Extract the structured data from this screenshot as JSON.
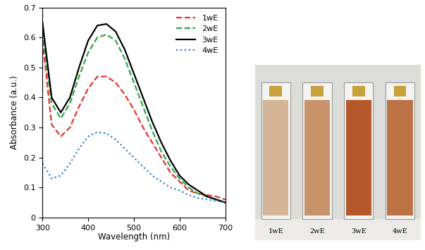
{
  "chart_data": {
    "type": "line",
    "xlabel": "Wavelength (nm)",
    "ylabel": "Absorbance (a.u.)",
    "x": [
      300,
      320,
      340,
      360,
      380,
      400,
      420,
      440,
      460,
      480,
      500,
      520,
      540,
      560,
      580,
      600,
      620,
      640,
      660,
      680,
      700
    ],
    "series": [
      {
        "name": "1wE",
        "color": "#e8312a",
        "line_style": "dashed",
        "values": [
          0.59,
          0.31,
          0.27,
          0.3,
          0.37,
          0.43,
          0.47,
          0.47,
          0.45,
          0.41,
          0.36,
          0.3,
          0.25,
          0.2,
          0.15,
          0.12,
          0.09,
          0.08,
          0.075,
          0.07,
          0.06
        ]
      },
      {
        "name": "2wE",
        "color": "#2ca84a",
        "line_style": "dashed",
        "values": [
          0.62,
          0.38,
          0.33,
          0.38,
          0.47,
          0.55,
          0.6,
          0.61,
          0.59,
          0.53,
          0.45,
          0.37,
          0.29,
          0.22,
          0.17,
          0.13,
          0.1,
          0.08,
          0.07,
          0.06,
          0.05
        ]
      },
      {
        "name": "3wE",
        "color": "#000000",
        "line_style": "solid",
        "values": [
          0.65,
          0.4,
          0.35,
          0.4,
          0.5,
          0.59,
          0.64,
          0.645,
          0.62,
          0.56,
          0.48,
          0.4,
          0.32,
          0.25,
          0.19,
          0.14,
          0.11,
          0.09,
          0.07,
          0.06,
          0.05
        ]
      },
      {
        "name": "4wE",
        "color": "#2e7fd6",
        "line_style": "dotted",
        "values": [
          0.18,
          0.13,
          0.14,
          0.18,
          0.23,
          0.27,
          0.285,
          0.28,
          0.26,
          0.23,
          0.2,
          0.17,
          0.14,
          0.12,
          0.1,
          0.09,
          0.075,
          0.065,
          0.06,
          0.055,
          0.05
        ]
      }
    ],
    "xlim": [
      300,
      700
    ],
    "ylim": [
      0,
      0.7
    ],
    "xticks": [
      300,
      400,
      500,
      600,
      700
    ],
    "yticks": [
      0,
      0.1,
      0.2,
      0.3,
      0.4,
      0.5,
      0.6,
      0.7
    ],
    "legend": "upper right"
  },
  "photo": {
    "labels": [
      "1wE",
      "2wE",
      "3wE",
      "4wE"
    ]
  }
}
